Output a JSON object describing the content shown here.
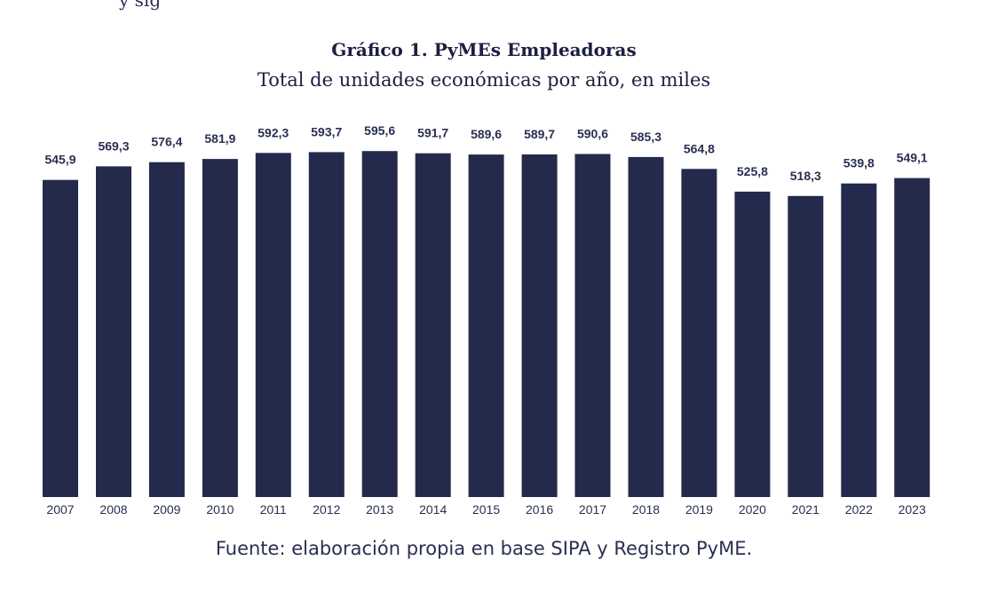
{
  "cut_text": "y sig",
  "chart_data": {
    "type": "bar",
    "title": "Gráfico 1. PyMEs Empleadoras",
    "subtitle": "Total de unidades económicas por año, en miles",
    "categories": [
      "2007",
      "2008",
      "2009",
      "2010",
      "2011",
      "2012",
      "2013",
      "2014",
      "2015",
      "2016",
      "2017",
      "2018",
      "2019",
      "2020",
      "2021",
      "2022",
      "2023"
    ],
    "values": [
      545.9,
      569.3,
      576.4,
      581.9,
      592.3,
      593.7,
      595.6,
      591.7,
      589.6,
      589.7,
      590.6,
      585.3,
      564.8,
      525.8,
      518.3,
      539.8,
      549.1
    ],
    "value_labels": [
      "545,9",
      "569,3",
      "576,4",
      "581,9",
      "592,3",
      "593,7",
      "595,6",
      "591,7",
      "589,6",
      "589,7",
      "590,6",
      "585,3",
      "564,8",
      "525,8",
      "518,3",
      "539,8",
      "549,1"
    ],
    "ylim": [
      0,
      600
    ],
    "bar_color": "#242a4c",
    "source": "Fuente: elaboración propia en base SIPA y Registro PyME."
  }
}
